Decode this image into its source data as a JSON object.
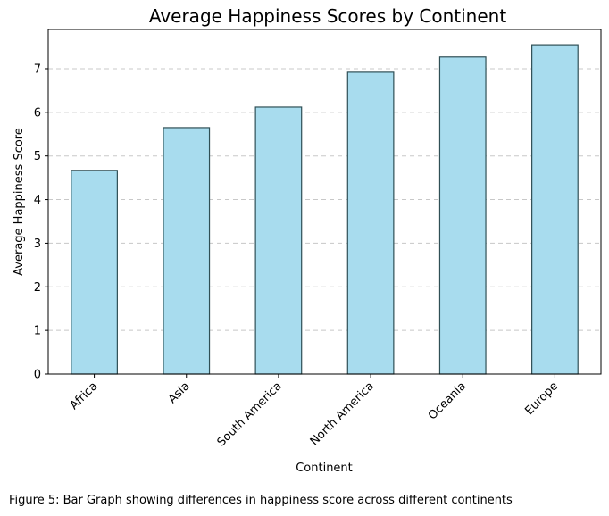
{
  "chart_data": {
    "type": "bar",
    "title": "Average Happiness Scores by Continent",
    "xlabel": "Continent",
    "ylabel": "Average Happiness Score",
    "categories": [
      "Africa",
      "Asia",
      "South America",
      "North America",
      "Oceania",
      "Europe"
    ],
    "values": [
      4.67,
      5.65,
      6.12,
      6.92,
      7.27,
      7.55
    ],
    "ylim": [
      0,
      7.9
    ],
    "yticks": [
      0,
      1,
      2,
      3,
      4,
      5,
      6,
      7
    ],
    "grid": "y-dashed",
    "bar_color": "#a8dcee",
    "bar_edge_color": "#2f4f55"
  },
  "caption": "Figure 5: Bar Graph showing differences in happiness score across different continents"
}
